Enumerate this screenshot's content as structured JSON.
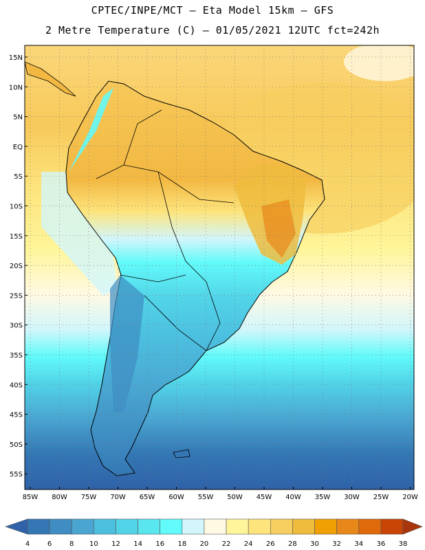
{
  "header": {
    "line1": "CPTEC/INPE/MCT –  Eta Model 15km – GFS",
    "line2": "2 Metre Temperature (C) – 01/05/2021 12UTC fct=242h"
  },
  "map": {
    "lat_labels": [
      "15N",
      "10N",
      "5N",
      "EQ",
      "5S",
      "10S",
      "15S",
      "20S",
      "25S",
      "30S",
      "35S",
      "40S",
      "45S",
      "50S",
      "55S"
    ],
    "lon_labels": [
      "85W",
      "80W",
      "75W",
      "70W",
      "65W",
      "60W",
      "55W",
      "50W",
      "45W",
      "40W",
      "35W",
      "30W",
      "25W",
      "20W"
    ]
  },
  "legend": {
    "values": [
      "4",
      "6",
      "8",
      "10",
      "12",
      "14",
      "16",
      "18",
      "20",
      "22",
      "24",
      "26",
      "28",
      "30",
      "32",
      "34",
      "36",
      "38"
    ],
    "colors": [
      "#2f62a8",
      "#3477b4",
      "#3f8dc2",
      "#4aa6d1",
      "#4cbfdf",
      "#52d4e8",
      "#5ae6ef",
      "#62fafa",
      "#d2f6fb",
      "#fff9e3",
      "#fff59a",
      "#fde47c",
      "#f7cf60",
      "#efbc3e",
      "#f0a000",
      "#e8871a",
      "#de6a0a",
      "#c84405",
      "#a8350b"
    ]
  }
}
